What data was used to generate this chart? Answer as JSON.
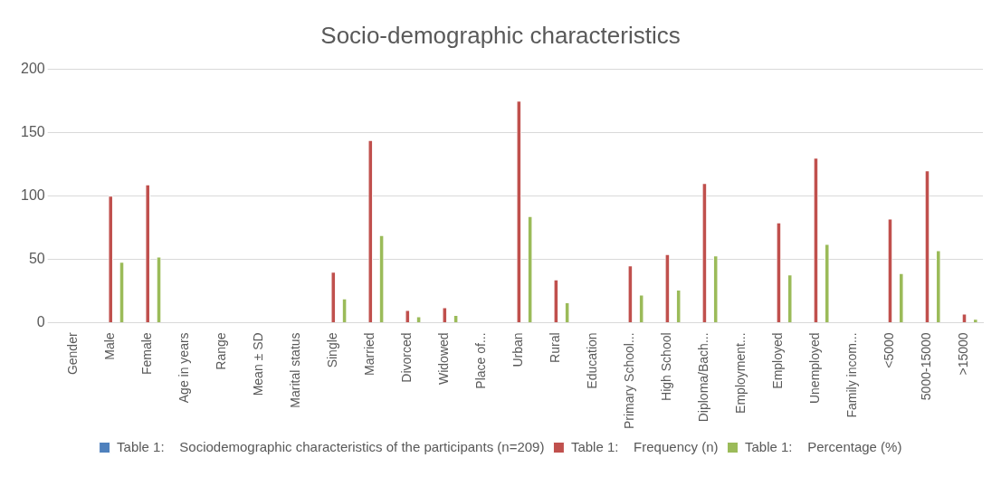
{
  "chart_data": {
    "type": "bar",
    "title": "Socio-demographic characteristics",
    "categories": [
      "Gender",
      "Male",
      "Female",
      "Age in years",
      "Range",
      "Mean ± SD",
      "Marital status",
      "Single",
      "Married",
      "Divorced",
      "Widowed",
      "Place of...",
      "Urban",
      "Rural",
      "Education",
      "Primary School...",
      "High School",
      "Diploma/Bach...",
      "Employment...",
      "Employed",
      "Unemployed",
      "Family incom...",
      "<5000",
      "5000-15000",
      ">15000"
    ],
    "series": [
      {
        "name": "Table 1:    Sociodemographic characteristics of the participants (n=209)",
        "color": "#4f81bd",
        "values": [
          null,
          null,
          null,
          null,
          null,
          null,
          null,
          null,
          null,
          null,
          null,
          null,
          null,
          null,
          null,
          null,
          null,
          null,
          null,
          null,
          null,
          null,
          null,
          null,
          null
        ]
      },
      {
        "name": "Table 1:    Frequency (n)",
        "color": "#c0504d",
        "values": [
          null,
          100,
          109,
          null,
          null,
          null,
          null,
          40,
          144,
          10,
          12,
          null,
          175,
          34,
          null,
          45,
          54,
          110,
          null,
          79,
          130,
          null,
          82,
          120,
          7
        ]
      },
      {
        "name": "Table 1:    Percentage (%)",
        "color": "#9bbb59",
        "values": [
          null,
          48,
          52,
          null,
          null,
          null,
          null,
          19,
          69,
          5,
          6,
          null,
          84,
          16,
          null,
          22,
          26,
          53,
          null,
          38,
          62,
          null,
          39,
          57,
          3
        ]
      }
    ],
    "ylim": [
      0,
      200
    ],
    "yticks": [
      0,
      50,
      100,
      150,
      200
    ],
    "grid": "y",
    "legend": "bottom"
  }
}
